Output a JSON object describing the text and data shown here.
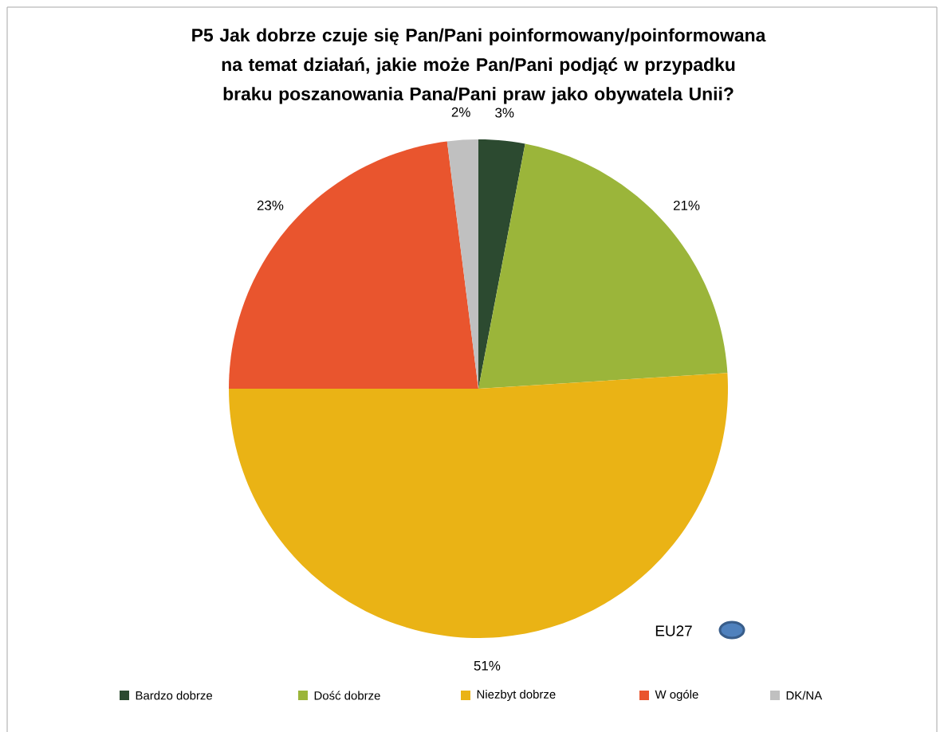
{
  "chart_data": {
    "type": "pie",
    "title": "P5 Jak dobrze czuje się Pan/Pani poinformowany/poinformowana na temat działań, jakie może Pan/Pani podjąć w przypadku braku poszanowania Pana/Pani praw jako obywatela Unii?",
    "categories": [
      "Bardzo dobrze",
      "Dość dobrze",
      "Niezbyt dobrze",
      "W ogóle",
      "DK/NA"
    ],
    "values": [
      3,
      21,
      51,
      23,
      2
    ],
    "colors": [
      "#2c4a30",
      "#9bb53a",
      "#eab315",
      "#e9552e",
      "#c0c0c0"
    ],
    "value_labels": [
      "3%",
      "21%",
      "51%",
      "23%",
      "2%"
    ],
    "legend": "bottom",
    "annotations": [
      "EU27"
    ]
  }
}
